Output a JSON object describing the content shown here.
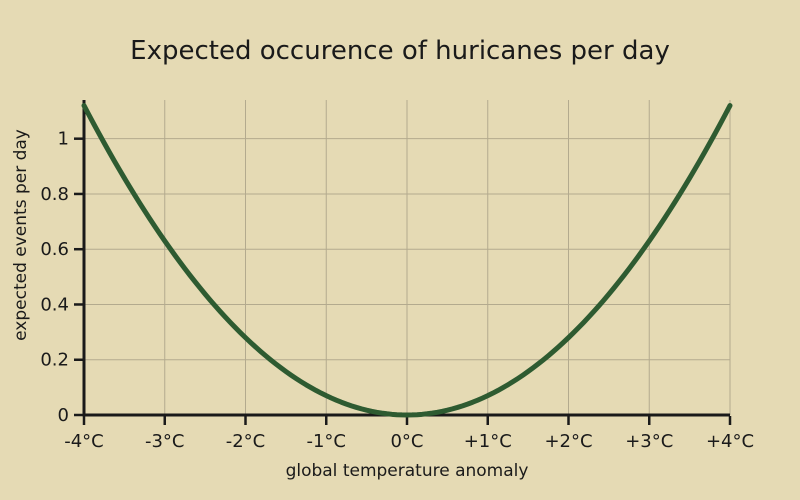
{
  "figure": {
    "kind": "statistical chart"
  },
  "colors": {
    "background": "#e5dab4",
    "curve": "#2e5b31",
    "grid": "#b3aa8e",
    "axis": "#1a1a1a",
    "text": "#1a1a1a"
  },
  "chart_data": {
    "type": "line",
    "title": "Expected occurence of huricanes per day",
    "xlabel": "global temperature anomaly",
    "ylabel": "expected events per day",
    "xlim": [
      -4,
      4
    ],
    "ylim": [
      0,
      1.14
    ],
    "grid": true,
    "legend": false,
    "x_ticks": {
      "values": [
        -4,
        -3,
        -2,
        -1,
        0,
        1,
        2,
        3,
        4
      ],
      "labels": [
        "-4°C",
        "-3°C",
        "-2°C",
        "-1°C",
        "0°C",
        "+1°C",
        "+2°C",
        "+3°C",
        "+4°C"
      ]
    },
    "y_ticks": {
      "values": [
        0,
        0.2,
        0.4,
        0.6,
        0.8,
        1
      ],
      "labels": [
        "0",
        "0.2",
        "0.4",
        "0.6",
        "0.8",
        "1"
      ]
    },
    "model": {
      "type": "quadratic",
      "formula": "y = 0.07 * x^2",
      "a": 0.07
    },
    "series": [
      {
        "name": "expected events per day",
        "color": "#2e5b31",
        "points": [
          [
            -4,
            1.12
          ],
          [
            -3.5,
            0.8575
          ],
          [
            -3,
            0.63
          ],
          [
            -2.5,
            0.4375
          ],
          [
            -2,
            0.28
          ],
          [
            -1.5,
            0.1575
          ],
          [
            -1,
            0.07
          ],
          [
            -0.5,
            0.0175
          ],
          [
            0,
            0
          ],
          [
            0.5,
            0.0175
          ],
          [
            1,
            0.07
          ],
          [
            1.5,
            0.1575
          ],
          [
            2,
            0.28
          ],
          [
            2.5,
            0.4375
          ],
          [
            3,
            0.63
          ],
          [
            3.5,
            0.8575
          ],
          [
            4,
            1.12
          ]
        ]
      }
    ]
  }
}
